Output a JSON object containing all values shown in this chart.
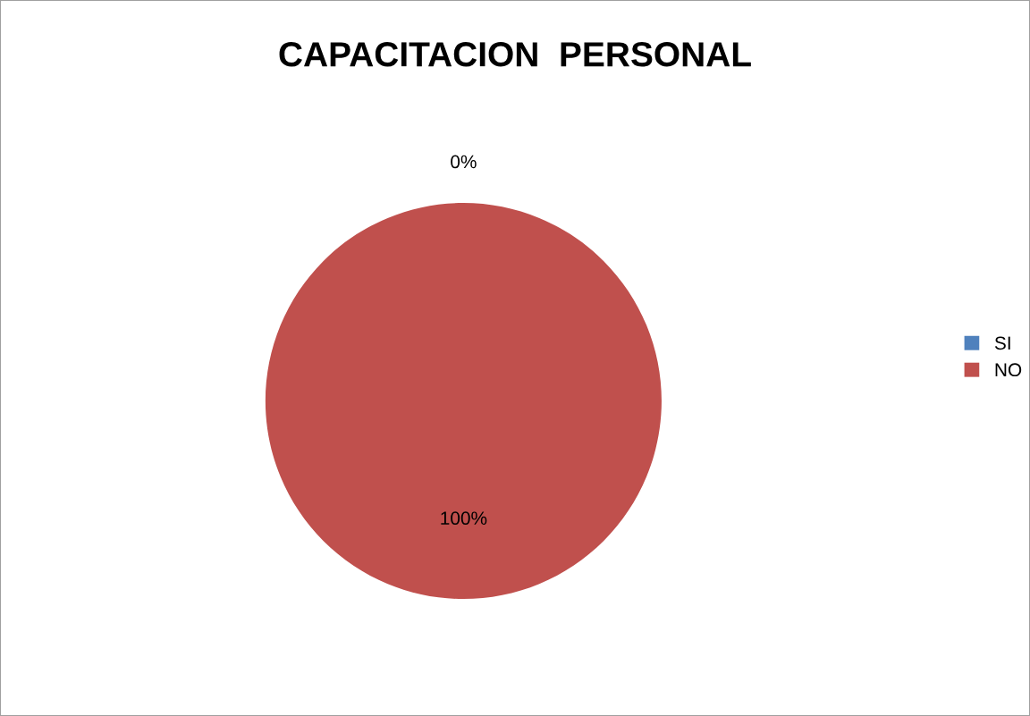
{
  "chart_data": {
    "type": "pie",
    "title": "CAPACITACION  PERSONAL",
    "categories": [
      "SI",
      "NO"
    ],
    "values": [
      0,
      100
    ],
    "colors": [
      "#4f81bd",
      "#c0504d"
    ],
    "value_labels": [
      "0%",
      "100%"
    ],
    "legend": "right"
  }
}
